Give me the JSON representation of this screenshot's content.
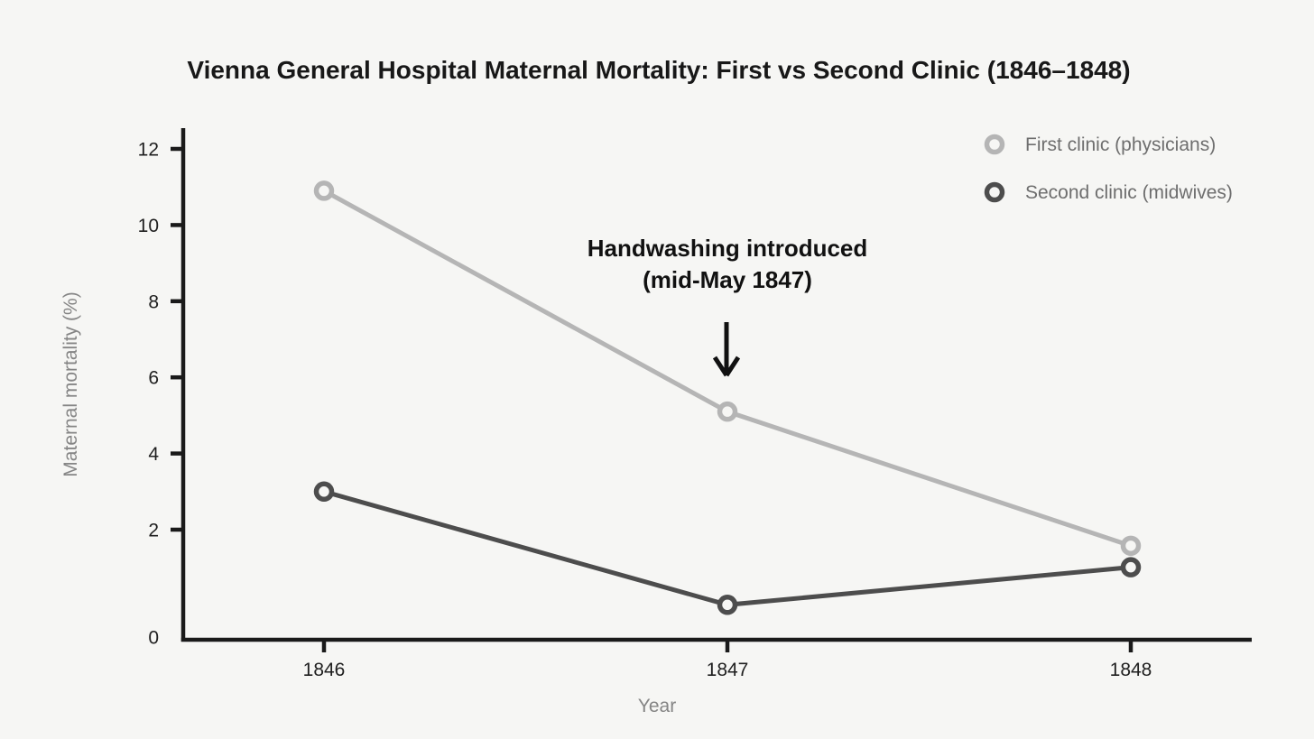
{
  "chart_data": {
    "type": "line",
    "title": "Vienna General Hospital Maternal Mortality: First vs Second Clinic (1846–1848)",
    "xlabel": "Year",
    "ylabel": "Maternal mortality (%)",
    "x": [
      1846,
      1847,
      1848
    ],
    "x_tick_labels": [
      "1846",
      "1847",
      "1848"
    ],
    "y_ticks": [
      0,
      2,
      4,
      6,
      8,
      10,
      12
    ],
    "y_tick_labels": [
      "0",
      "2",
      "4",
      "6",
      "8",
      "10",
      "12"
    ],
    "ylim": [
      0,
      12
    ],
    "grid": false,
    "legend_position": "top-right",
    "series": [
      {
        "name": "First clinic (physicians)",
        "color": "#b5b5b5",
        "values": [
          10.9,
          5.1,
          1.7
        ]
      },
      {
        "name": "Second clinic (midwives)",
        "color": "#4d4d4d",
        "values": [
          3.0,
          0.6,
          1.3
        ]
      }
    ],
    "annotation": {
      "text_line1": "Handwashing introduced",
      "text_line2": "(mid-May 1847)",
      "arrow": "down-arrow",
      "target_x": 1847
    },
    "colors": {
      "background": "#f6f6f4",
      "axis": "#1a1a1a",
      "title_text": "#181818",
      "tick_text": "#1f1f1f",
      "axis_label_text": "#858585",
      "legend_text": "#6e6e6e",
      "annotation": "#111111",
      "marker_fill": "#f6f6f4",
      "series_first_clinic": "#b5b5b5",
      "series_second_clinic": "#4d4d4d"
    }
  }
}
